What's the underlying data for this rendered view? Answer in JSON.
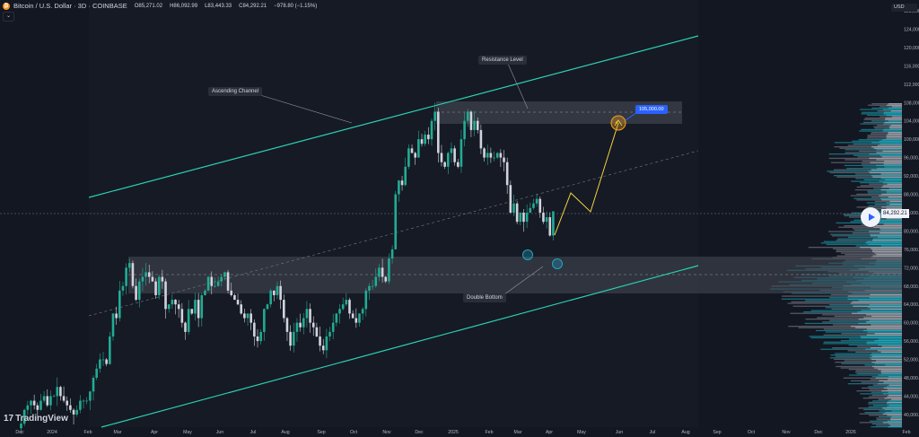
{
  "header": {
    "symbol": "Bitcoin / U.S. Dollar · 3D · COINBASE",
    "open": "O85,271.02",
    "high": "H86,092.99",
    "low": "L83,443.33",
    "close": "C84,292.21",
    "change": "−978.80 (−1.15%)",
    "collapse_icon": "chevron-down-icon"
  },
  "currency": "USD",
  "current_price": "84,292.21",
  "logo": "TradingView",
  "annotations": {
    "ascending_channel": "Ascending Channel",
    "resistance_level": "Resistance Level",
    "double_bottom": "Double Bottom",
    "target_label": "105,000.00"
  },
  "colors": {
    "background": "#131722",
    "up_candle": "#22ab94",
    "down_candle": "#d1d4dc",
    "channel": "#2bd1b5",
    "projection": "#f5d33d",
    "target": "#2962ff",
    "target_circle": "#f7a21b",
    "bottom_circle": "#22a5c2"
  },
  "chart_data": {
    "type": "candlestick",
    "interval": "3D",
    "y_axis": {
      "ylim": [
        38000,
        130000
      ],
      "ticks": [
        "128,000.00",
        "124,000.00",
        "120,000.00",
        "116,000.00",
        "112,000.00",
        "108,000.00",
        "104,000.00",
        "100,000.00",
        "96,000.00",
        "92,000.00",
        "88,000.00",
        "84,000.00",
        "80,000.00",
        "76,000.00",
        "72,000.00",
        "68,000.00",
        "64,000.00",
        "60,000.00",
        "56,000.00",
        "52,000.00",
        "48,000.00",
        "44,000.00",
        "40,000.00"
      ]
    },
    "x_axis": {
      "ticks": [
        "Dec",
        "2024",
        "Feb",
        "Mar",
        "Apr",
        "May",
        "Jun",
        "Jul",
        "Aug",
        "Sep",
        "Oct",
        "Nov",
        "Dec",
        "2025",
        "Feb",
        "Mar",
        "Apr",
        "May",
        "Jun",
        "Jul",
        "Aug",
        "Sep",
        "Oct",
        "Nov",
        "Dec",
        "2026",
        "Feb"
      ]
    },
    "closes_by_month": [
      {
        "month": "Dec 2023",
        "closes": [
          38,
          41,
          42,
          43,
          42,
          41,
          43,
          44,
          42,
          44
        ]
      },
      {
        "month": "Jan 2024",
        "closes": [
          44,
          46,
          44,
          43,
          42,
          41,
          40,
          41,
          43,
          43
        ]
      },
      {
        "month": "Feb 2024",
        "closes": [
          43,
          45,
          48,
          50,
          52,
          52,
          51,
          57,
          62,
          61
        ]
      },
      {
        "month": "Mar 2024",
        "closes": [
          67,
          68,
          72,
          73,
          68,
          65,
          69,
          70,
          71,
          70
        ]
      },
      {
        "month": "Apr 2024",
        "closes": [
          69,
          66,
          70,
          69,
          63,
          64,
          65,
          64,
          63,
          60
        ]
      },
      {
        "month": "May 2024",
        "closes": [
          58,
          63,
          62,
          65,
          61,
          66,
          67,
          70,
          68,
          68
        ]
      },
      {
        "month": "Jun 2024",
        "closes": [
          69,
          70,
          71,
          67,
          66,
          65,
          64,
          62,
          61,
          62
        ]
      },
      {
        "month": "Jul 2024",
        "closes": [
          60,
          57,
          56,
          58,
          63,
          64,
          67,
          66,
          68,
          65
        ]
      },
      {
        "month": "Aug 2024",
        "closes": [
          61,
          58,
          55,
          58,
          60,
          59,
          61,
          63,
          60,
          59
        ]
      },
      {
        "month": "Sep 2024",
        "closes": [
          57,
          55,
          54,
          57,
          58,
          60,
          62,
          63,
          64,
          65
        ]
      },
      {
        "month": "Oct 2024",
        "closes": [
          62,
          61,
          60,
          62,
          63,
          67,
          68,
          68,
          70,
          72
        ]
      },
      {
        "month": "Nov 2024",
        "closes": [
          70,
          69,
          74,
          76,
          88,
          91,
          90,
          94,
          98,
          97
        ]
      },
      {
        "month": "Dec 2024",
        "closes": [
          96,
          100,
          99,
          101,
          100,
          104,
          106,
          97,
          95,
          94
        ]
      },
      {
        "month": "Jan 2025",
        "closes": [
          97,
          98,
          95,
          94,
          100,
          104,
          106,
          102,
          104,
          102
        ]
      },
      {
        "month": "Feb 2025",
        "closes": [
          98,
          96,
          97,
          96,
          96,
          97,
          96,
          95,
          90,
          84
        ]
      },
      {
        "month": "Mar 2025",
        "closes": [
          86,
          82,
          84,
          82,
          84,
          85,
          86,
          87,
          84,
          82
        ]
      },
      {
        "month": "Apr 2025",
        "closes": [
          83,
          79,
          84.29
        ]
      }
    ],
    "unit": "thousand USD",
    "resistance_zone": [
      104500,
      109500
    ],
    "support_zone": [
      66500,
      74500
    ],
    "projection_path": [
      84000,
      89000,
      85000,
      105000
    ]
  }
}
